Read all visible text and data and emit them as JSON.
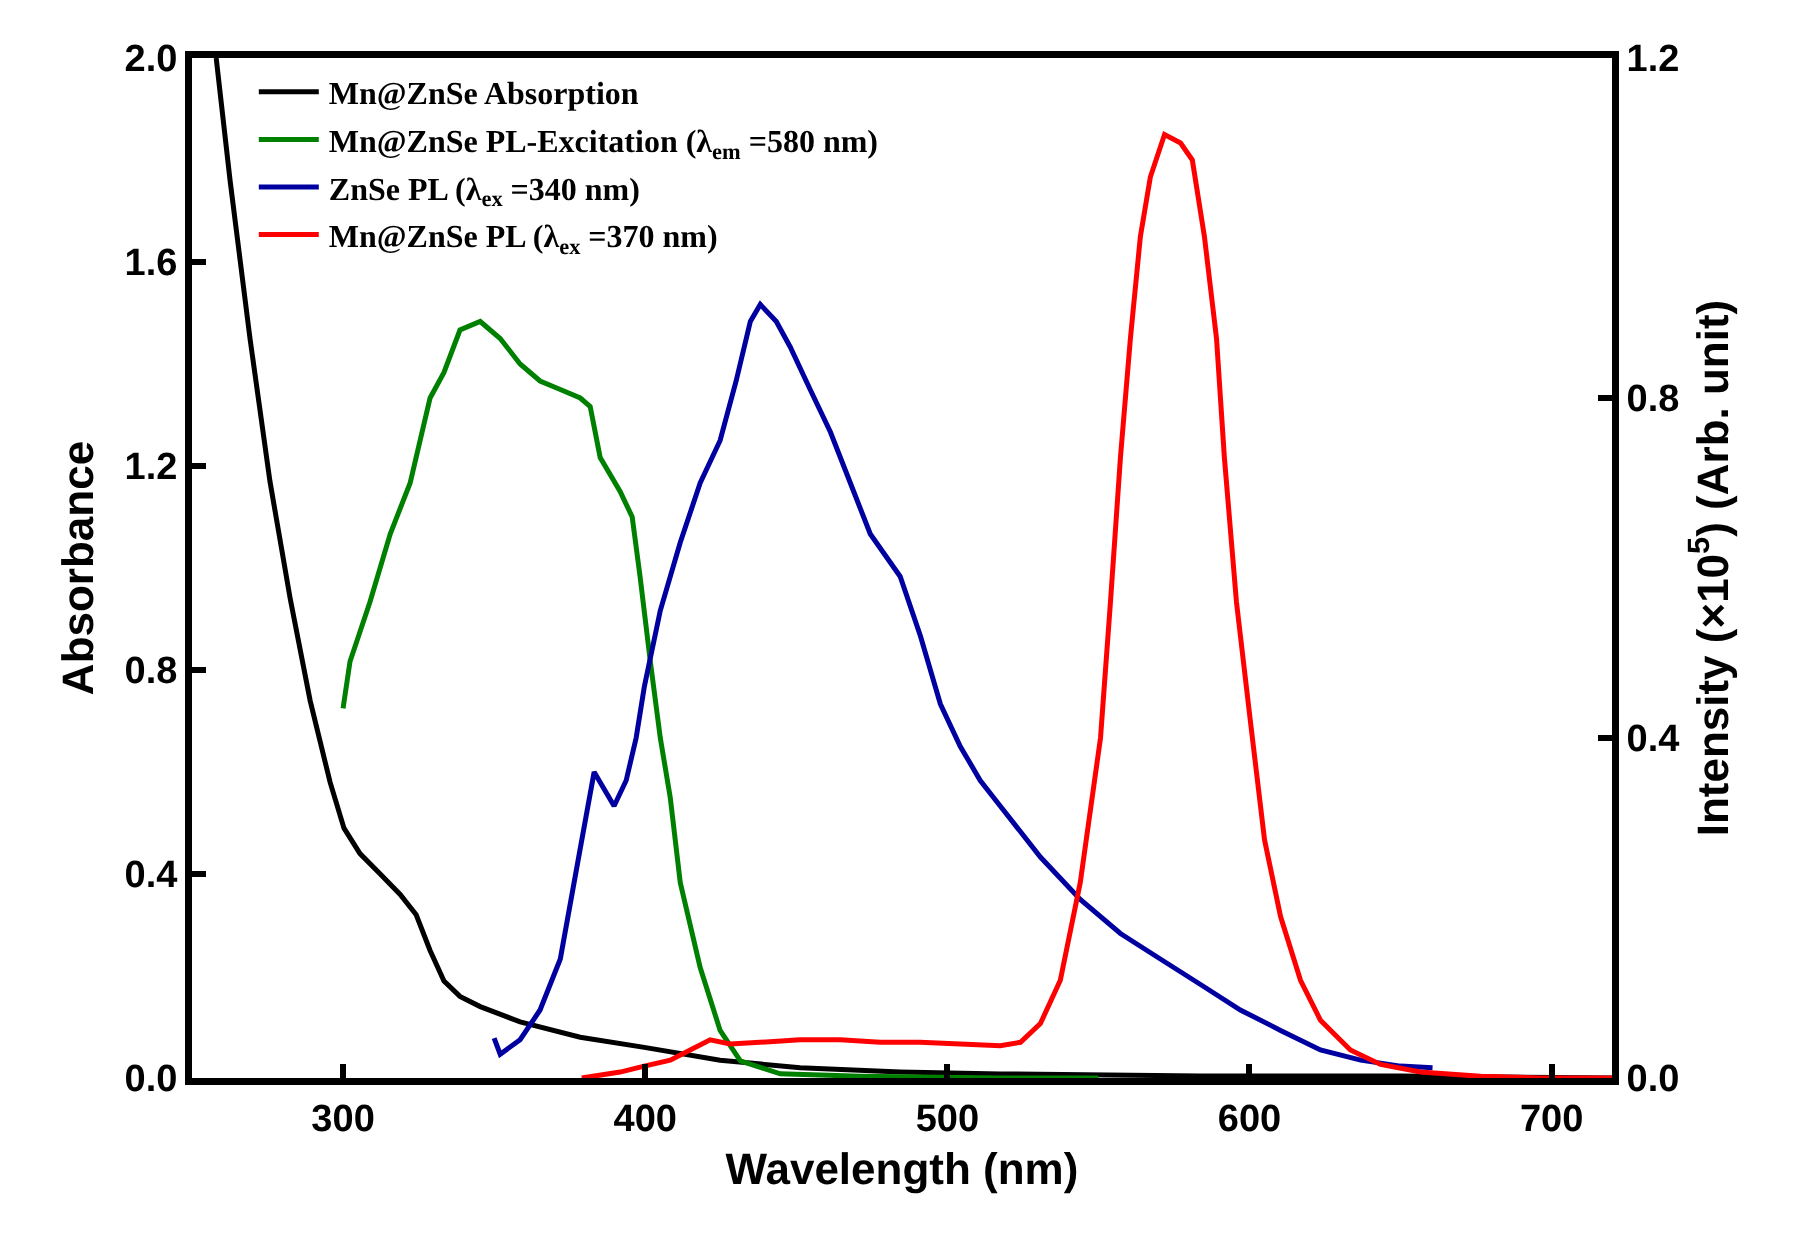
{
  "chart_data": {
    "type": "line",
    "xlabel": "Wavelength (nm)",
    "ylabel": "Absorbance",
    "y2label": "Intensity (×10$^{5}$) (Arb. unit)",
    "xlim": [
      250,
      720
    ],
    "xticks": [
      300,
      400,
      500,
      600,
      700
    ],
    "ylim": [
      0,
      2.0
    ],
    "yticks": [
      {
        "value": 0,
        "label": "0.0"
      },
      {
        "value": 0.4,
        "label": "0.4"
      },
      {
        "value": 0.8,
        "label": "0.8"
      },
      {
        "value": 1.2,
        "label": "1.2"
      },
      {
        "value": 1.6,
        "label": "1.6"
      },
      {
        "value": 2.0,
        "label": "2.0"
      }
    ],
    "y2lim": [
      0,
      1.2
    ],
    "y2ticks": [
      {
        "value": 0,
        "label": "0.0"
      },
      {
        "value": 0.4,
        "label": "0.4"
      },
      {
        "value": 0.8,
        "label": "0.8"
      },
      {
        "value": 1.2,
        "label": "1.2"
      }
    ],
    "grid": false,
    "legend": "top left",
    "marker": "none",
    "line_style": "solid",
    "series": [
      {
        "name": "Mn@ZnSe Absorption",
        "color": "#000000",
        "x": [
          258,
          262.6,
          269.2,
          275.8,
          282.5,
          289.1,
          295.7,
          300.3,
          305.6,
          312.3,
          318.9,
          324.2,
          328.8,
          333.4,
          338.7,
          345.4,
          358.6,
          378.5,
          399.7,
          424.8,
          451.3,
          484.4,
          517.5,
          583.8,
          650,
          720
        ],
        "values": [
          2.0,
          1.76,
          1.45,
          1.17,
          0.94,
          0.74,
          0.58,
          0.49,
          0.44,
          0.4,
          0.36,
          0.32,
          0.25,
          0.19,
          0.16,
          0.14,
          0.11,
          0.08,
          0.06,
          0.035,
          0.02,
          0.012,
          0.008,
          0.004,
          0.004,
          0.0
        ]
      },
      {
        "name": "Mn@ZnSe PL-Excitation (λ$_{em}$ =580 nm)",
        "color": "#008000",
        "axis": "y2",
        "x": [
          300,
          302.3,
          308.9,
          315.6,
          322.2,
          328.8,
          333.4,
          338.7,
          345.4,
          352,
          358.6,
          365.2,
          371.9,
          378.5,
          381.8,
          385.1,
          391.7,
          395.7,
          398.3,
          401.7,
          405,
          408.3,
          411.6,
          418.2,
          424.8,
          431.5,
          444.7,
          471.2,
          517.5,
          550
        ],
        "values": [
          0.435,
          0.49,
          0.56,
          0.64,
          0.7,
          0.8,
          0.83,
          0.88,
          0.89,
          0.87,
          0.84,
          0.82,
          0.81,
          0.8,
          0.79,
          0.73,
          0.69,
          0.66,
          0.59,
          0.49,
          0.4,
          0.33,
          0.23,
          0.13,
          0.056,
          0.02,
          0.005,
          0.002,
          0.0,
          0.0
        ]
      },
      {
        "name": "ZnSe PL (λ$_{ex}$ =340 nm)",
        "color": "#0000a0",
        "axis": "y2",
        "x": [
          350,
          352,
          358.6,
          365.2,
          371.9,
          378.5,
          383.1,
          386.4,
          389.7,
          393.7,
          397,
          399.7,
          405,
          411.6,
          418.2,
          424.8,
          430.1,
          434.8,
          438.1,
          443.4,
          448,
          454.6,
          461.3,
          467.9,
          474.5,
          484.4,
          491.1,
          497.7,
          504.3,
          510.9,
          517.5,
          530.8,
          544,
          557.3,
          570.5,
          583.8,
          597,
          610.3,
          623.5,
          636.8,
          650,
          660.6
        ],
        "values": [
          0.047,
          0.028,
          0.045,
          0.08,
          0.14,
          0.27,
          0.36,
          0.34,
          0.32,
          0.35,
          0.4,
          0.46,
          0.55,
          0.63,
          0.7,
          0.75,
          0.82,
          0.89,
          0.91,
          0.89,
          0.86,
          0.81,
          0.76,
          0.7,
          0.64,
          0.59,
          0.52,
          0.44,
          0.39,
          0.35,
          0.32,
          0.26,
          0.21,
          0.17,
          0.14,
          0.11,
          0.08,
          0.056,
          0.033,
          0.021,
          0.014,
          0.012
        ]
      },
      {
        "name": "Mn@ZnSe PL (λ$_{ex}$ =370 nm)",
        "color": "#ff0000",
        "axis": "y2",
        "x": [
          379,
          391.7,
          399.7,
          408.3,
          414.9,
          421.5,
          428.1,
          438,
          451.3,
          464.6,
          477.8,
          491,
          504.3,
          517.5,
          524.2,
          530.8,
          537.4,
          544,
          550.7,
          554,
          557.3,
          560.6,
          563.9,
          567.2,
          571.9,
          577.2,
          581.1,
          585.1,
          589.1,
          591.7,
          595.7,
          600.3,
          605,
          610.3,
          616.9,
          623.5,
          633.4,
          643.4,
          656.6,
          676.5,
          696.4,
          720
        ],
        "values": [
          0.0,
          0.007,
          0.014,
          0.021,
          0.033,
          0.045,
          0.04,
          0.042,
          0.045,
          0.045,
          0.042,
          0.042,
          0.04,
          0.038,
          0.042,
          0.064,
          0.115,
          0.23,
          0.4,
          0.56,
          0.73,
          0.87,
          0.99,
          1.06,
          1.11,
          1.1,
          1.08,
          0.99,
          0.87,
          0.73,
          0.56,
          0.42,
          0.28,
          0.19,
          0.115,
          0.068,
          0.033,
          0.016,
          0.007,
          0.002,
          0.0,
          0.0
        ]
      }
    ]
  }
}
